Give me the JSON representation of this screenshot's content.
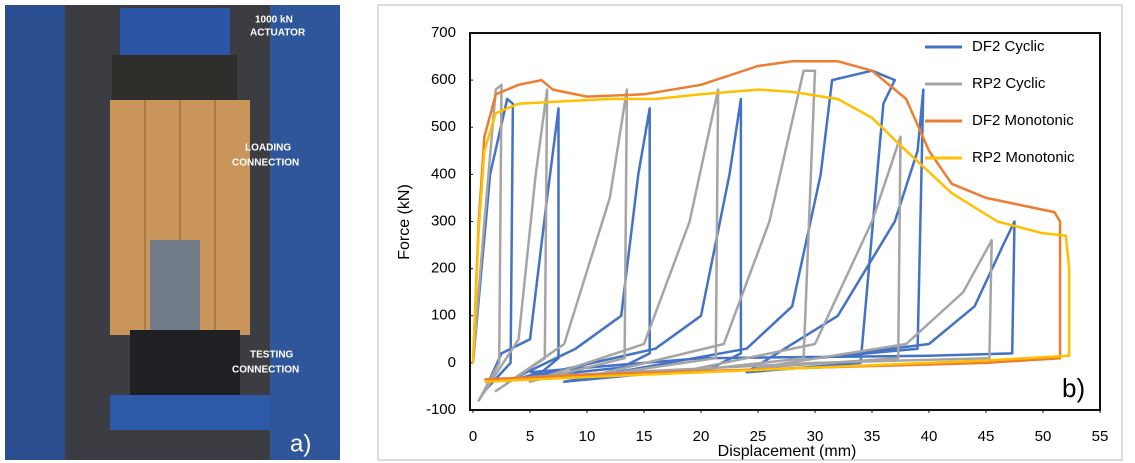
{
  "photo": {
    "labels": [
      "1000 kN",
      "ACTUATOR",
      "LOADING",
      "CONNECTION",
      "TESTING",
      "CONNECTION"
    ],
    "panel_label": "a)"
  },
  "chart_data": {
    "type": "line",
    "panel_label": "b)",
    "x_label": "Displacement (mm)",
    "y_label": "Force (kN)",
    "xlim": [
      0,
      55
    ],
    "xticks": [
      0,
      5,
      10,
      15,
      20,
      25,
      30,
      35,
      40,
      45,
      50,
      55
    ],
    "ylim": [
      -100,
      700
    ],
    "yticks": [
      -100,
      0,
      100,
      200,
      300,
      400,
      500,
      600,
      700
    ],
    "grid": false,
    "legend": "upper right",
    "series": [
      {
        "name": "DF2 Cyclic",
        "color": "#4472c4",
        "x": [
          0,
          1.5,
          3,
          3.5,
          3.3,
          1,
          2.5,
          5,
          6.5,
          7.5,
          7.5,
          6,
          3,
          9,
          13,
          14.5,
          15.5,
          15.5,
          13,
          5,
          16,
          20,
          22.5,
          23.5,
          23.5,
          21,
          8,
          24,
          28,
          30.5,
          31.5,
          35,
          37,
          36,
          34,
          24,
          32,
          37,
          39,
          39.5,
          39,
          30,
          40,
          44,
          46.5,
          47.5,
          47.3,
          40,
          20,
          5
        ],
        "values": [
          0,
          400,
          560,
          550,
          0,
          -60,
          20,
          50,
          350,
          540,
          10,
          -20,
          -40,
          30,
          100,
          400,
          540,
          20,
          -10,
          -30,
          30,
          100,
          400,
          560,
          20,
          -10,
          -40,
          30,
          120,
          400,
          600,
          620,
          600,
          550,
          0,
          -20,
          100,
          300,
          450,
          580,
          30,
          10,
          40,
          120,
          250,
          300,
          20,
          15,
          10,
          -20
        ]
      },
      {
        "name": "RP2 Cyclic",
        "color": "#a5a5a5",
        "x": [
          0,
          1,
          2,
          2.5,
          2.3,
          0.5,
          4,
          5.5,
          6.5,
          6.3,
          2,
          8,
          12,
          13.5,
          13.3,
          5,
          15,
          19,
          21.5,
          21.3,
          10,
          22,
          26,
          29,
          30,
          29,
          18,
          30,
          35,
          37.5,
          37.3,
          25,
          38,
          43,
          45.5,
          45.3,
          30,
          5
        ],
        "values": [
          0,
          300,
          580,
          590,
          0,
          -80,
          50,
          400,
          580,
          10,
          -60,
          40,
          350,
          580,
          10,
          -40,
          40,
          300,
          580,
          10,
          -30,
          40,
          300,
          620,
          620,
          10,
          -20,
          40,
          300,
          480,
          10,
          -10,
          40,
          150,
          260,
          10,
          0,
          -30
        ]
      },
      {
        "name": "DF2 Monotonic",
        "color": "#ed7d31",
        "x": [
          0,
          0.5,
          1,
          2,
          4,
          6,
          7,
          10,
          15,
          20,
          25,
          28,
          32,
          35,
          38,
          40,
          42,
          45,
          48,
          51,
          51.5,
          51.5,
          51.5,
          45,
          30,
          10,
          1
        ],
        "values": [
          0,
          300,
          480,
          570,
          590,
          600,
          580,
          565,
          570,
          590,
          630,
          640,
          640,
          620,
          560,
          450,
          380,
          350,
          335,
          320,
          300,
          200,
          10,
          0,
          -10,
          -25,
          -35
        ]
      },
      {
        "name": "RP2 Monotonic",
        "color": "#ffc000",
        "x": [
          0,
          0.5,
          1,
          2,
          4,
          8,
          12,
          16,
          20,
          25,
          28,
          32,
          35,
          38,
          42,
          46,
          50,
          52,
          52.3,
          52.3,
          45,
          30,
          10,
          1
        ],
        "values": [
          0,
          280,
          450,
          530,
          550,
          555,
          560,
          560,
          570,
          580,
          575,
          560,
          520,
          450,
          360,
          300,
          275,
          270,
          200,
          15,
          5,
          -10,
          -30,
          -40
        ]
      }
    ]
  }
}
